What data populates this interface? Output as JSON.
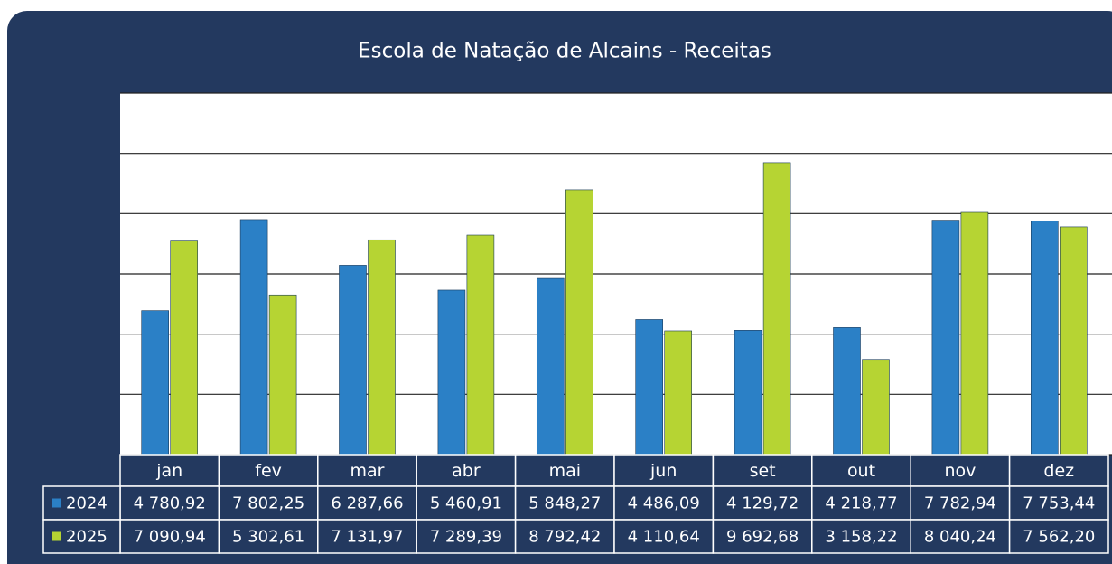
{
  "chart_data": {
    "type": "bar",
    "title": "Escola de Natação de Alcains - Receitas",
    "categories": [
      "jan",
      "fev",
      "mar",
      "abr",
      "mai",
      "jun",
      "set",
      "out",
      "nov",
      "dez"
    ],
    "series": [
      {
        "name": "2024",
        "color": "#2b80c6",
        "values": [
          4780.92,
          7802.25,
          6287.66,
          5460.91,
          5848.27,
          4486.09,
          4129.72,
          4218.77,
          7782.94,
          7753.44
        ],
        "value_labels": [
          "4 780,92",
          "7 802,25",
          "6 287,66",
          "5 460,91",
          "5 848,27",
          "4 486,09",
          "4 129,72",
          "4 218,77",
          "7 782,94",
          "7 753,44"
        ]
      },
      {
        "name": "2025",
        "color": "#b6d433",
        "values": [
          7090.94,
          5302.61,
          7131.97,
          7289.39,
          8792.42,
          4110.64,
          9692.68,
          3158.22,
          8040.24,
          7562.2
        ],
        "value_labels": [
          "7 090,94",
          "5 302,61",
          "7 131,97",
          "7 289,39",
          "8 792,42",
          "4 110,64",
          "9 692,68",
          "3 158,22",
          "8 040,24",
          "7 562,20"
        ]
      }
    ],
    "ylim": [
      0,
      12000
    ],
    "yticks": [
      0,
      2000,
      4000,
      6000,
      8000,
      10000,
      12000
    ],
    "grid": true
  }
}
